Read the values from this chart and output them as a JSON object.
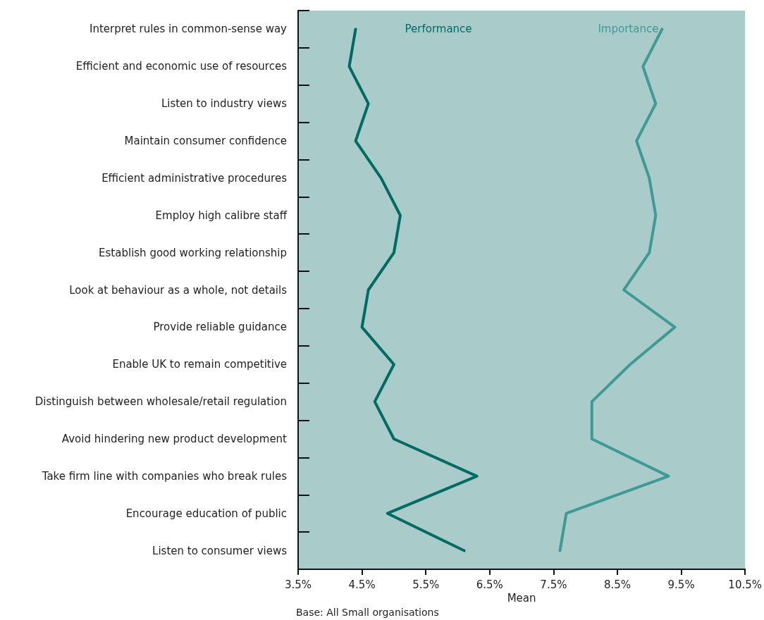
{
  "chart_data": {
    "type": "line",
    "orientation": "horizontal",
    "xlabel": "Mean",
    "categories": [
      "Interpret rules in common-sense way",
      "Efficient and economic use of resources",
      "Listen to industry views",
      "Maintain consumer confidence",
      "Efficient administrative procedures",
      "Employ high calibre staff",
      "Establish good working relationship",
      "Look at behaviour as a whole, not details",
      "Provide reliable guidance",
      "Enable UK to remain competitive",
      "Distinguish between wholesale/retail regulation",
      "Avoid hindering new product development",
      "Take firm line with companies who break rules",
      "Encourage education of public",
      "Listen to consumer views"
    ],
    "series": [
      {
        "name": "Performance",
        "color": "#006b63",
        "values": [
          4.4,
          4.3,
          4.6,
          4.4,
          4.8,
          5.1,
          5.0,
          4.6,
          4.5,
          5.0,
          4.7,
          5.0,
          6.3,
          4.9,
          6.1
        ]
      },
      {
        "name": "Importance",
        "color": "#3f9a96",
        "values": [
          9.2,
          8.9,
          9.1,
          8.8,
          9.0,
          9.1,
          9.0,
          8.6,
          9.4,
          8.7,
          8.1,
          8.1,
          9.3,
          7.7,
          7.6
        ]
      }
    ],
    "xlim": [
      3.5,
      10.5
    ],
    "xticks": [
      {
        "value": 3.5,
        "label": "3.5%"
      },
      {
        "value": 4.5,
        "label": "4.5%"
      },
      {
        "value": 5.5,
        "label": "5.5%"
      },
      {
        "value": 6.5,
        "label": "6.5%"
      },
      {
        "value": 7.5,
        "label": "7.5%"
      },
      {
        "value": 8.5,
        "label": "8.5%"
      },
      {
        "value": 9.5,
        "label": "9.5%"
      },
      {
        "value": 10.5,
        "label": "10.5%"
      }
    ],
    "grid": false,
    "legend": false,
    "line_style": "solid",
    "annotations": [
      "Base: All Small organisations"
    ]
  }
}
